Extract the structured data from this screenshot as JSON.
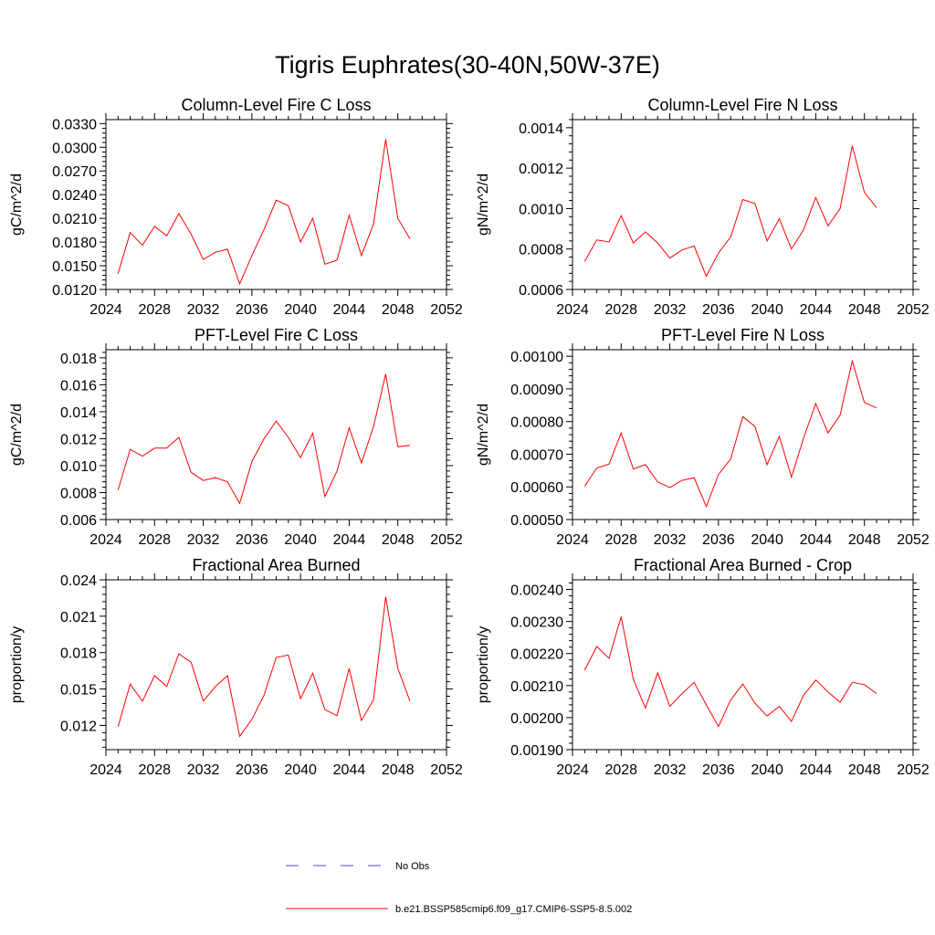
{
  "title": "Tigris Euphrates(30-40N,50W-37E)",
  "colors": {
    "series": "#ff0000",
    "obs": "#4b4bd8",
    "axis": "#000000"
  },
  "legend": [
    {
      "label": "No Obs",
      "style": "dashed",
      "color": "#4b4bd8"
    },
    {
      "label": "b.e21.BSSP585cmip6.f09_g17.CMIP6-SSP5-8.5.002",
      "style": "solid",
      "color": "#ff0000"
    }
  ],
  "chart_data": [
    {
      "type": "line",
      "title": "Column-Level Fire C Loss",
      "xlabel": "",
      "ylabel": "gC/m^2/d",
      "xlim": [
        2024,
        2052
      ],
      "ylim": [
        0.012,
        0.0335
      ],
      "xticks": [
        "2024",
        "2028",
        "2032",
        "2036",
        "2040",
        "2044",
        "2048",
        "2052"
      ],
      "yticks": [
        "0.0120",
        "0.0150",
        "0.0180",
        "0.0210",
        "0.0240",
        "0.0270",
        "0.0300",
        "0.0330"
      ],
      "x": [
        2025,
        2026,
        2027,
        2028,
        2029,
        2030,
        2031,
        2032,
        2033,
        2034,
        2035,
        2036,
        2037,
        2038,
        2039,
        2040,
        2041,
        2042,
        2043,
        2044,
        2045,
        2046,
        2047,
        2048,
        2049
      ],
      "series": [
        {
          "values": [
            0.014,
            0.0192,
            0.0176,
            0.02,
            0.0188,
            0.0216,
            0.019,
            0.0158,
            0.0167,
            0.0171,
            0.0127,
            0.0163,
            0.0196,
            0.0233,
            0.0226,
            0.018,
            0.021,
            0.0152,
            0.0157,
            0.0214,
            0.0163,
            0.0203,
            0.031,
            0.021,
            0.0184
          ]
        }
      ]
    },
    {
      "type": "line",
      "title": "Column-Level Fire N Loss",
      "xlabel": "",
      "ylabel": "gN/m^2/d",
      "xlim": [
        2024,
        2052
      ],
      "ylim": [
        0.0006,
        0.00144
      ],
      "xticks": [
        "2024",
        "2028",
        "2032",
        "2036",
        "2040",
        "2044",
        "2048",
        "2052"
      ],
      "yticks": [
        "0.0006",
        "0.0008",
        "0.0010",
        "0.0012",
        "0.0014"
      ],
      "x": [
        2025,
        2026,
        2027,
        2028,
        2029,
        2030,
        2031,
        2032,
        2033,
        2034,
        2035,
        2036,
        2037,
        2038,
        2039,
        2040,
        2041,
        2042,
        2043,
        2044,
        2045,
        2046,
        2047,
        2048,
        2049
      ],
      "series": [
        {
          "values": [
            0.000738,
            0.000845,
            0.000835,
            0.000965,
            0.00083,
            0.000885,
            0.00083,
            0.000755,
            0.000795,
            0.000815,
            0.000665,
            0.00078,
            0.00086,
            0.001045,
            0.001025,
            0.00084,
            0.00095,
            0.0008,
            0.000895,
            0.001055,
            0.000915,
            0.001,
            0.00131,
            0.00108,
            0.001005
          ]
        }
      ]
    },
    {
      "type": "line",
      "title": "PFT-Level Fire C Loss",
      "xlabel": "",
      "ylabel": "gC/m^2/d",
      "xlim": [
        2024,
        2052
      ],
      "ylim": [
        0.006,
        0.0186
      ],
      "xticks": [
        "2024",
        "2028",
        "2032",
        "2036",
        "2040",
        "2044",
        "2048",
        "2052"
      ],
      "yticks": [
        "0.006",
        "0.008",
        "0.010",
        "0.012",
        "0.014",
        "0.016",
        "0.018"
      ],
      "x": [
        2025,
        2026,
        2027,
        2028,
        2029,
        2030,
        2031,
        2032,
        2033,
        2034,
        2035,
        2036,
        2037,
        2038,
        2039,
        2040,
        2041,
        2042,
        2043,
        2044,
        2045,
        2046,
        2047,
        2048,
        2049
      ],
      "series": [
        {
          "values": [
            0.0082,
            0.0112,
            0.0107,
            0.0113,
            0.0113,
            0.0121,
            0.0095,
            0.0089,
            0.0091,
            0.0088,
            0.0072,
            0.0103,
            0.012,
            0.0133,
            0.0121,
            0.0106,
            0.0124,
            0.0077,
            0.0096,
            0.0128,
            0.0102,
            0.0129,
            0.0168,
            0.0114,
            0.0115
          ]
        }
      ]
    },
    {
      "type": "line",
      "title": "PFT-Level Fire N Loss",
      "xlabel": "",
      "ylabel": "gN/m^2/d",
      "xlim": [
        2024,
        2052
      ],
      "ylim": [
        0.0005,
        0.00102
      ],
      "xticks": [
        "2024",
        "2028",
        "2032",
        "2036",
        "2040",
        "2044",
        "2048",
        "2052"
      ],
      "yticks": [
        "0.00050",
        "0.00060",
        "0.00070",
        "0.00080",
        "0.00090",
        "0.00100"
      ],
      "x": [
        2025,
        2026,
        2027,
        2028,
        2029,
        2030,
        2031,
        2032,
        2033,
        2034,
        2035,
        2036,
        2037,
        2038,
        2039,
        2040,
        2041,
        2042,
        2043,
        2044,
        2045,
        2046,
        2047,
        2048,
        2049
      ],
      "series": [
        {
          "values": [
            0.000602,
            0.000658,
            0.00067,
            0.000765,
            0.000655,
            0.000668,
            0.000615,
            0.000598,
            0.00062,
            0.000628,
            0.00054,
            0.000638,
            0.000685,
            0.000815,
            0.000785,
            0.000668,
            0.000755,
            0.00063,
            0.00075,
            0.000855,
            0.000765,
            0.00082,
            0.000985,
            0.000858,
            0.000842
          ]
        }
      ]
    },
    {
      "type": "line",
      "title": "Fractional Area Burned",
      "xlabel": "",
      "ylabel": "proportion/y",
      "xlim": [
        2024,
        2052
      ],
      "ylim": [
        0.01,
        0.024
      ],
      "xticks": [
        "2024",
        "2028",
        "2032",
        "2036",
        "2040",
        "2044",
        "2048",
        "2052"
      ],
      "yticks": [
        "0.012",
        "0.015",
        "0.018",
        "0.021",
        "0.024"
      ],
      "x": [
        2025,
        2026,
        2027,
        2028,
        2029,
        2030,
        2031,
        2032,
        2033,
        2034,
        2035,
        2036,
        2037,
        2038,
        2039,
        2040,
        2041,
        2042,
        2043,
        2044,
        2045,
        2046,
        2047,
        2048,
        2049
      ],
      "series": [
        {
          "values": [
            0.0119,
            0.0154,
            0.014,
            0.0161,
            0.0152,
            0.0179,
            0.0172,
            0.014,
            0.0152,
            0.0161,
            0.0111,
            0.0125,
            0.0145,
            0.0176,
            0.0178,
            0.0142,
            0.0163,
            0.0133,
            0.0128,
            0.0167,
            0.0124,
            0.0141,
            0.0226,
            0.0167,
            0.014
          ]
        }
      ]
    },
    {
      "type": "line",
      "title": "Fractional Area Burned - Crop",
      "xlabel": "",
      "ylabel": "proportion/y",
      "xlim": [
        2024,
        2052
      ],
      "ylim": [
        0.0019,
        0.00243
      ],
      "xticks": [
        "2024",
        "2028",
        "2032",
        "2036",
        "2040",
        "2044",
        "2048",
        "2052"
      ],
      "yticks": [
        "0.00190",
        "0.00200",
        "0.00210",
        "0.00220",
        "0.00230",
        "0.00240"
      ],
      "x": [
        2025,
        2026,
        2027,
        2028,
        2029,
        2030,
        2031,
        2032,
        2033,
        2034,
        2035,
        2036,
        2037,
        2038,
        2039,
        2040,
        2041,
        2042,
        2043,
        2044,
        2045,
        2046,
        2047,
        2048,
        2049
      ],
      "series": [
        {
          "values": [
            0.002148,
            0.002222,
            0.002185,
            0.002315,
            0.00212,
            0.00203,
            0.00214,
            0.002035,
            0.002075,
            0.00211,
            0.00204,
            0.001972,
            0.002055,
            0.002105,
            0.002045,
            0.002005,
            0.002035,
            0.001988,
            0.00207,
            0.002117,
            0.00208,
            0.002048,
            0.00211,
            0.002103,
            0.002075
          ]
        }
      ]
    }
  ]
}
